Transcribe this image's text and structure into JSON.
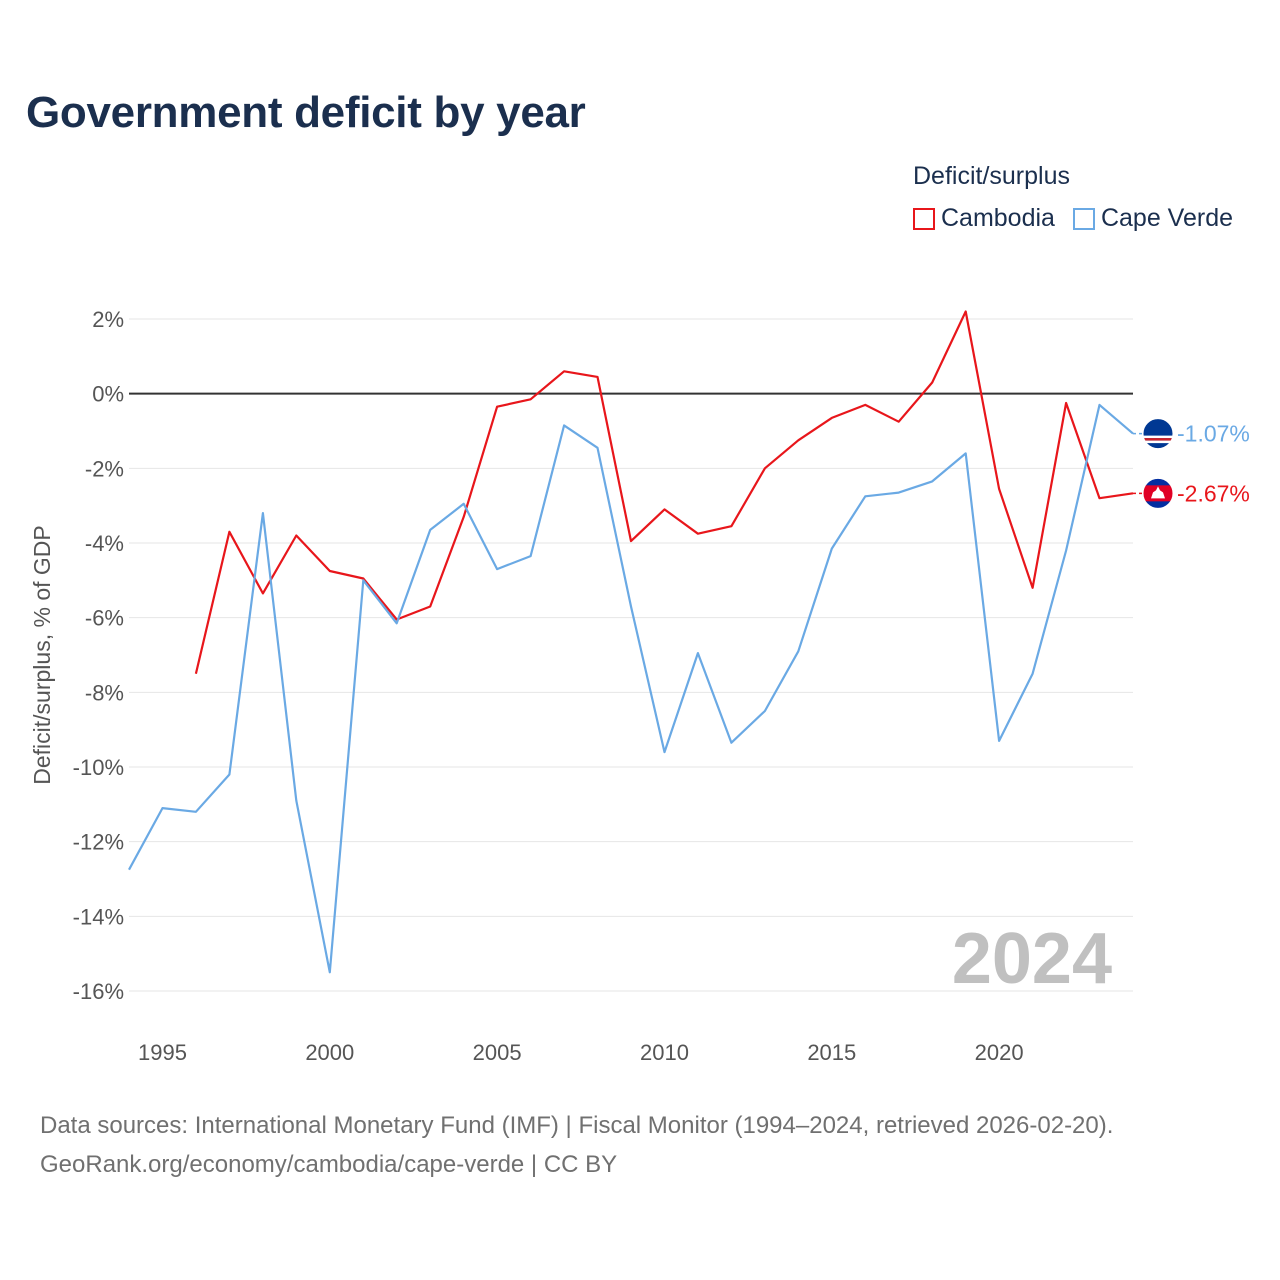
{
  "title": "Government deficit by year",
  "legend": {
    "title": "Deficit/surplus",
    "items": [
      {
        "label": "Cambodia",
        "color": "#e8161b"
      },
      {
        "label": "Cape Verde",
        "color": "#6aa9e4"
      }
    ]
  },
  "year_label": "2024",
  "footer": {
    "line1": "Data sources: International Monetary Fund (IMF) | Fiscal Monitor (1994–2024, retrieved 2026-02-20).",
    "line2": "GeoRank.org/economy/cambodia/cape-verde | CC BY"
  },
  "chart_data": {
    "type": "line",
    "title": "Government deficit by year",
    "xlabel": "",
    "ylabel": "Deficit/surplus, % of GDP",
    "xlim": [
      1994,
      2024
    ],
    "ylim": [
      -16.5,
      2.5
    ],
    "xticks": [
      1995,
      2000,
      2005,
      2010,
      2015,
      2020
    ],
    "yticks": [
      2,
      0,
      -2,
      -4,
      -6,
      -8,
      -10,
      -12,
      -14,
      -16
    ],
    "ytick_labels": [
      "2%",
      "0%",
      "-2%",
      "-4%",
      "-6%",
      "-8%",
      "-10%",
      "-12%",
      "-14%",
      "-16%"
    ],
    "grid": true,
    "legend_position": "top-right",
    "series": [
      {
        "name": "Cambodia",
        "color": "#e8161b",
        "end_label": "-2.67%",
        "x": [
          1996,
          1997,
          1998,
          1999,
          2000,
          2001,
          2002,
          2003,
          2004,
          2005,
          2006,
          2007,
          2008,
          2009,
          2010,
          2011,
          2012,
          2013,
          2014,
          2015,
          2016,
          2017,
          2018,
          2019,
          2020,
          2021,
          2022,
          2023,
          2024
        ],
        "values": [
          -7.5,
          -3.7,
          -5.35,
          -3.8,
          -4.75,
          -4.95,
          -6.05,
          -5.7,
          -3.3,
          -0.35,
          -0.15,
          0.6,
          0.45,
          -3.95,
          -3.1,
          -3.75,
          -3.55,
          -2.0,
          -1.25,
          -0.65,
          -0.3,
          -0.75,
          0.3,
          2.2,
          -2.55,
          -5.2,
          -0.25,
          -2.8,
          -2.67
        ]
      },
      {
        "name": "Cape Verde",
        "color": "#6aa9e4",
        "end_label": "-1.07%",
        "x": [
          1994,
          1995,
          1996,
          1997,
          1998,
          1999,
          2000,
          2001,
          2002,
          2003,
          2004,
          2005,
          2006,
          2007,
          2008,
          2009,
          2010,
          2011,
          2012,
          2013,
          2014,
          2015,
          2016,
          2017,
          2018,
          2019,
          2020,
          2021,
          2022,
          2023,
          2024
        ],
        "values": [
          -12.75,
          -11.1,
          -11.2,
          -10.2,
          -3.2,
          -10.9,
          -15.5,
          -5.0,
          -6.15,
          -3.65,
          -2.95,
          -4.7,
          -4.35,
          -0.85,
          -1.45,
          -5.7,
          -9.6,
          -6.95,
          -9.35,
          -8.5,
          -6.9,
          -4.15,
          -2.75,
          -2.65,
          -2.35,
          -1.6,
          -9.3,
          -7.5,
          -4.2,
          -0.3,
          -1.07
        ]
      }
    ]
  }
}
